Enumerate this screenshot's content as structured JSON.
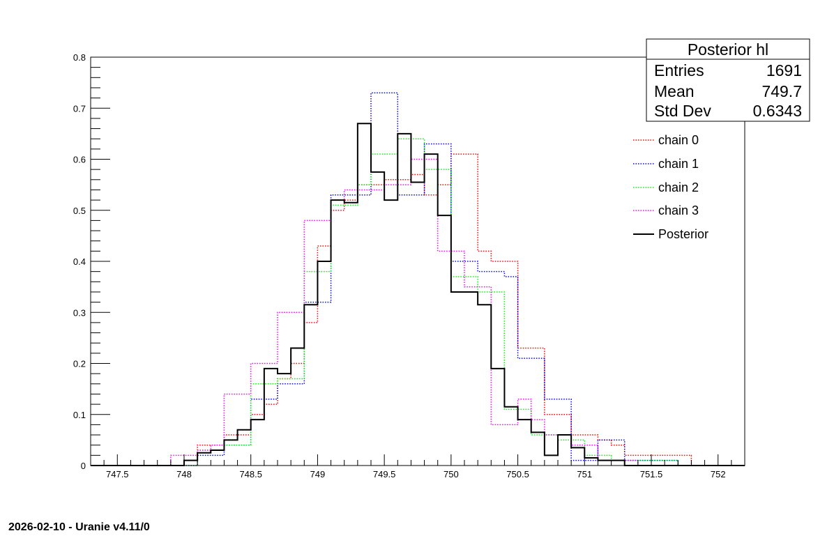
{
  "chart_data": {
    "type": "histogram",
    "xlim": [
      747.3,
      752.2
    ],
    "ylim": [
      0,
      0.8
    ],
    "x_ticks": [
      "747.5",
      "748",
      "748.5",
      "749",
      "749.5",
      "750",
      "750.5",
      "751",
      "751.5",
      "752"
    ],
    "y_ticks": [
      "0",
      "0.1",
      "0.2",
      "0.3",
      "0.4",
      "0.5",
      "0.6",
      "0.7",
      "0.8"
    ],
    "bin_start": 747.3,
    "bin_width": 0.1,
    "grid": false,
    "legend_position": "top-right",
    "stats_box": {
      "title": "Posterior hl",
      "rows": [
        {
          "label": "Entries",
          "value": "1691"
        },
        {
          "label": "Mean",
          "value": "749.7"
        },
        {
          "label": "Std Dev",
          "value": "0.6343"
        }
      ]
    },
    "series": [
      {
        "name": "chain 0",
        "color": "#ff0000",
        "style": "dotted",
        "values": [
          0,
          0,
          0,
          0,
          0,
          0,
          0,
          0.01,
          0.04,
          0.04,
          0.06,
          0.06,
          0.1,
          0.12,
          0.17,
          0.2,
          0.28,
          0.43,
          0.5,
          0.52,
          0.55,
          0.55,
          0.56,
          0.56,
          0.57,
          0.53,
          0.55,
          0.61,
          0.61,
          0.42,
          0.4,
          0.4,
          0.23,
          0.23,
          0.1,
          0.1,
          0.06,
          0.06,
          0.05,
          0.04,
          0.02,
          0.02,
          0.02,
          0.02,
          0.02,
          0,
          0,
          0,
          0
        ]
      },
      {
        "name": "chain 1",
        "color": "#0000ff",
        "style": "dotted",
        "values": [
          0,
          0,
          0,
          0,
          0,
          0,
          0,
          0,
          0.02,
          0.02,
          0.04,
          0.04,
          0.13,
          0.13,
          0.16,
          0.16,
          0.32,
          0.32,
          0.53,
          0.53,
          0.53,
          0.73,
          0.73,
          0.53,
          0.53,
          0.63,
          0.63,
          0.4,
          0.4,
          0.38,
          0.38,
          0.37,
          0.21,
          0.21,
          0.13,
          0.13,
          0.01,
          0.01,
          0.05,
          0.05,
          0.01,
          0.01,
          0.01,
          0.01,
          0,
          0,
          0,
          0,
          0
        ]
      },
      {
        "name": "chain 2",
        "color": "#00ff00",
        "style": "dotted",
        "values": [
          0,
          0,
          0,
          0,
          0,
          0,
          0,
          0,
          0.03,
          0.03,
          0.04,
          0.04,
          0.16,
          0.16,
          0.17,
          0.17,
          0.38,
          0.38,
          0.51,
          0.51,
          0.55,
          0.61,
          0.61,
          0.64,
          0.64,
          0.58,
          0.58,
          0.37,
          0.37,
          0.34,
          0.34,
          0.11,
          0.11,
          0.06,
          0.06,
          0.05,
          0.05,
          0.02,
          0.02,
          0.01,
          0.01,
          0.01,
          0.01,
          0.01,
          0,
          0,
          0,
          0,
          0
        ]
      },
      {
        "name": "chain 3",
        "color": "#ff00ff",
        "style": "dotted",
        "values": [
          0,
          0,
          0,
          0,
          0,
          0,
          0.02,
          0.02,
          0.03,
          0.04,
          0.14,
          0.14,
          0.2,
          0.2,
          0.3,
          0.3,
          0.48,
          0.48,
          0.52,
          0.54,
          0.54,
          0.54,
          0.55,
          0.55,
          0.6,
          0.6,
          0.42,
          0.42,
          0.35,
          0.35,
          0.08,
          0.08,
          0.13,
          0.09,
          0.06,
          0.06,
          0.04,
          0.04,
          0.01,
          0.01,
          0.01,
          0,
          0,
          0,
          0,
          0,
          0,
          0,
          0
        ]
      },
      {
        "name": "Posterior",
        "color": "#000000",
        "style": "solid",
        "values": [
          0,
          0,
          0,
          0,
          0,
          0,
          0,
          0.01,
          0.025,
          0.03,
          0.05,
          0.07,
          0.09,
          0.19,
          0.18,
          0.23,
          0.315,
          0.4,
          0.52,
          0.515,
          0.67,
          0.575,
          0.52,
          0.65,
          0.555,
          0.61,
          0.49,
          0.34,
          0.34,
          0.315,
          0.19,
          0.115,
          0.09,
          0.065,
          0.02,
          0.06,
          0.035,
          0.015,
          0.01,
          0.01,
          0,
          0,
          0,
          0,
          0,
          0,
          0,
          0,
          0
        ]
      }
    ]
  },
  "footer": {
    "text": "2026-02-10 - Uranie v4.11/0"
  }
}
